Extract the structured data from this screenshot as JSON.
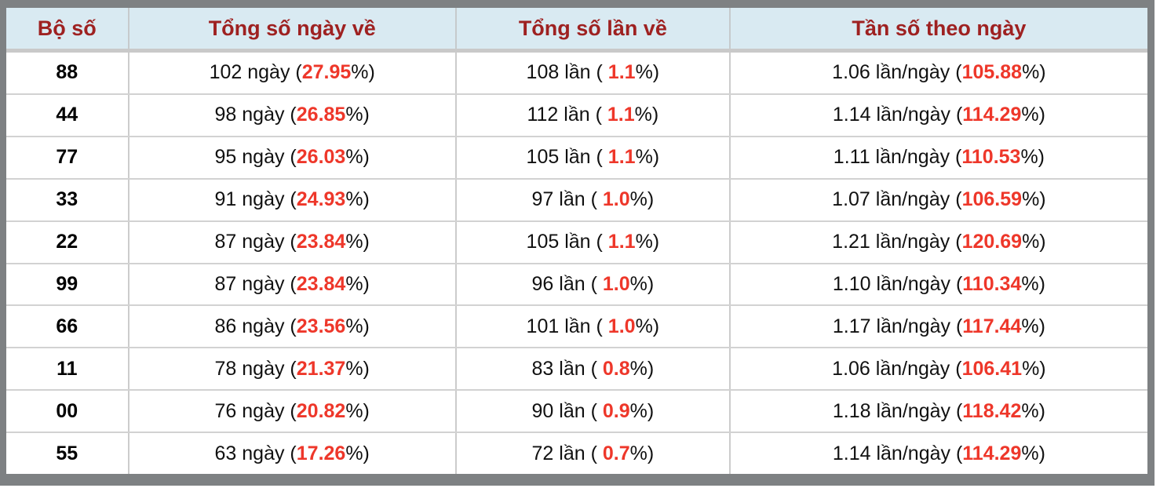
{
  "table": {
    "columns": [
      {
        "label": "Bộ số"
      },
      {
        "label": "Tổng số ngày về"
      },
      {
        "label": "Tổng số lần về"
      },
      {
        "label": "Tần số theo ngày"
      }
    ],
    "labels": {
      "days_open": " ngày (",
      "times_open": " lần ( ",
      "freq_open": " lần/ngày (",
      "pct_close": "%)"
    },
    "rows": [
      {
        "pair": "88",
        "days": "102",
        "days_pct": "27.95",
        "times": "108",
        "times_pct": "1.1",
        "freq": "1.06",
        "freq_pct": "105.88"
      },
      {
        "pair": "44",
        "days": "98",
        "days_pct": "26.85",
        "times": "112",
        "times_pct": "1.1",
        "freq": "1.14",
        "freq_pct": "114.29"
      },
      {
        "pair": "77",
        "days": "95",
        "days_pct": "26.03",
        "times": "105",
        "times_pct": "1.1",
        "freq": "1.11",
        "freq_pct": "110.53"
      },
      {
        "pair": "33",
        "days": "91",
        "days_pct": "24.93",
        "times": "97",
        "times_pct": "1.0",
        "freq": "1.07",
        "freq_pct": "106.59"
      },
      {
        "pair": "22",
        "days": "87",
        "days_pct": "23.84",
        "times": "105",
        "times_pct": "1.1",
        "freq": "1.21",
        "freq_pct": "120.69"
      },
      {
        "pair": "99",
        "days": "87",
        "days_pct": "23.84",
        "times": "96",
        "times_pct": "1.0",
        "freq": "1.10",
        "freq_pct": "110.34"
      },
      {
        "pair": "66",
        "days": "86",
        "days_pct": "23.56",
        "times": "101",
        "times_pct": "1.0",
        "freq": "1.17",
        "freq_pct": "117.44"
      },
      {
        "pair": "11",
        "days": "78",
        "days_pct": "21.37",
        "times": "83",
        "times_pct": "0.8",
        "freq": "1.06",
        "freq_pct": "106.41"
      },
      {
        "pair": "00",
        "days": "76",
        "days_pct": "20.82",
        "times": "90",
        "times_pct": "0.9",
        "freq": "1.18",
        "freq_pct": "118.42"
      },
      {
        "pair": "55",
        "days": "63",
        "days_pct": "17.26",
        "times": "72",
        "times_pct": "0.7",
        "freq": "1.14",
        "freq_pct": "114.29"
      }
    ],
    "colors": {
      "header_bg": "#d9eaf2",
      "header_text": "#9e2121",
      "highlight_red": "#ee372a",
      "frame_gray": "#7e8183",
      "divider": "#cccccc"
    }
  }
}
